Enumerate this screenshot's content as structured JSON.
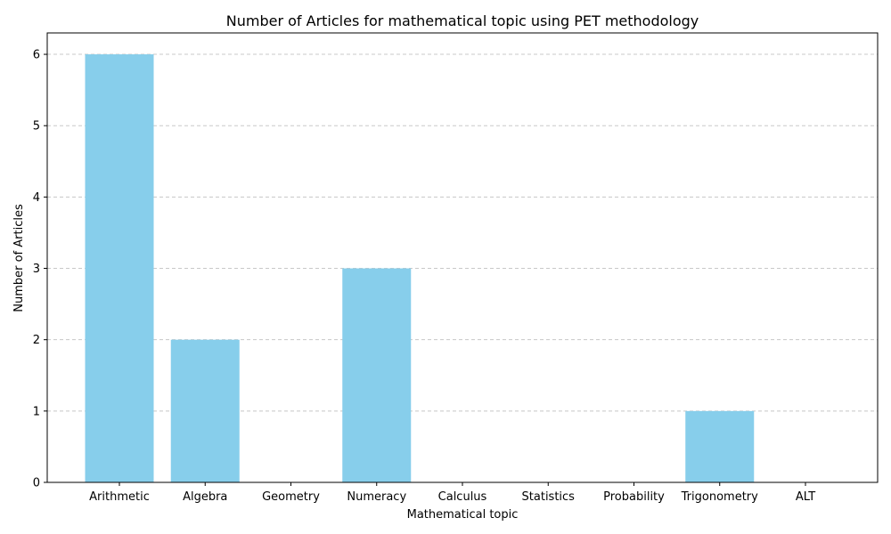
{
  "chart_data": {
    "type": "bar",
    "title": "Number of Articles for mathematical topic using PET methodology",
    "xlabel": "Mathematical topic",
    "ylabel": "Number of Articles",
    "categories": [
      "Arithmetic",
      "Algebra",
      "Geometry",
      "Numeracy",
      "Calculus",
      "Statistics",
      "Probability",
      "Trigonometry",
      "ALT"
    ],
    "values": [
      6,
      2,
      0,
      3,
      0,
      0,
      0,
      1,
      0
    ],
    "ylim": [
      0,
      6.3
    ],
    "yticks": [
      0,
      1,
      2,
      3,
      4,
      5,
      6
    ],
    "grid": "y-dashed",
    "bar_color": "#87ceeb",
    "grid_color": "#c8c8c8"
  }
}
